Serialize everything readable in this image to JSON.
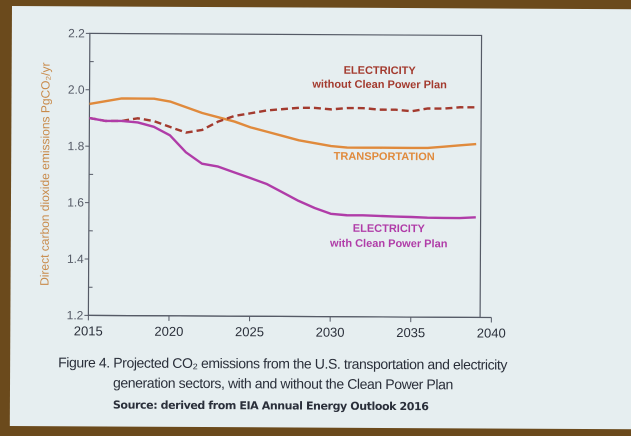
{
  "chart_data": {
    "type": "line",
    "title": "",
    "xlabel": "",
    "ylabel": "Direct carbon dioxide emissions  PgCO₂/yr",
    "xlim": [
      2015,
      2040
    ],
    "ylim": [
      1.2,
      2.2
    ],
    "xticks": [
      "2015",
      "2020",
      "2025",
      "2030",
      "2035",
      "2040"
    ],
    "yticks": [
      "1.2",
      "1.4",
      "1.6",
      "1.8",
      "2.0",
      "2.2"
    ],
    "grid": false,
    "x": [
      2015,
      2016,
      2017,
      2018,
      2019,
      2020,
      2021,
      2022,
      2023,
      2024,
      2025,
      2026,
      2027,
      2028,
      2029,
      2030,
      2031,
      2032,
      2033,
      2034,
      2035,
      2036,
      2037,
      2038,
      2039
    ],
    "series": [
      {
        "name": "TRANSPORTATION",
        "label_lines": [
          "TRANSPORTATION"
        ],
        "color": "#e08a3c",
        "dashed": false,
        "values": [
          1.95,
          1.96,
          1.97,
          1.97,
          1.97,
          1.96,
          1.94,
          1.92,
          1.905,
          1.89,
          1.87,
          1.855,
          1.84,
          1.825,
          1.815,
          1.805,
          1.8,
          1.8,
          1.8,
          1.8,
          1.8,
          1.8,
          1.805,
          1.81,
          1.815
        ]
      },
      {
        "name": "ELECTRICITY without Clean Power Plan",
        "label_lines": [
          "ELECTRICITY",
          "without Clean Power Plan"
        ],
        "color": "#a33a2e",
        "dashed": true,
        "values": [
          1.9,
          1.89,
          1.89,
          1.9,
          1.89,
          1.87,
          1.85,
          1.86,
          1.89,
          1.91,
          1.92,
          1.93,
          1.935,
          1.94,
          1.94,
          1.935,
          1.94,
          1.94,
          1.935,
          1.935,
          1.93,
          1.94,
          1.94,
          1.945,
          1.945
        ]
      },
      {
        "name": "ELECTRICITY with Clean Power Plan",
        "label_lines": [
          "ELECTRICITY",
          "with Clean Power Plan"
        ],
        "color": "#b03ca8",
        "dashed": false,
        "values": [
          1.9,
          1.89,
          1.89,
          1.885,
          1.87,
          1.84,
          1.78,
          1.74,
          1.73,
          1.71,
          1.69,
          1.67,
          1.64,
          1.61,
          1.585,
          1.565,
          1.56,
          1.56,
          1.558,
          1.556,
          1.555,
          1.553,
          1.552,
          1.552,
          1.555
        ]
      }
    ]
  },
  "caption": {
    "line1": "Figure 4.  Projected CO₂ emissions from the U.S. transportation and electricity",
    "line2": "generation sectors, with and without the Clean Power Plan",
    "source": "Source: derived from EIA Annual Energy Outlook 2016"
  }
}
